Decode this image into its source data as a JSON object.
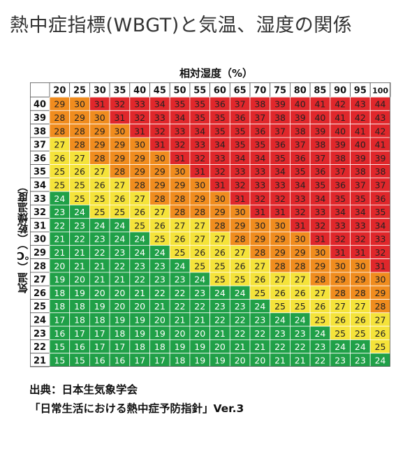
{
  "title": "熱中症指標(WBGT)と気温、湿度の関係",
  "source": {
    "line1": "出典：日本生気象学会",
    "line2": "「日常生活における熱中症予防指針」Ver.3"
  },
  "colors": {
    "danger": "#e0272b",
    "severe_warning": "#f08c1e",
    "warning": "#f5e33a",
    "caution": "#20a048"
  },
  "chart_data": {
    "type": "heatmap",
    "title": "熱中症指標(WBGT)と気温、湿度の関係",
    "xlabel": "相対湿度（%）",
    "ylabel": "気温（℃）（乾燥温度）",
    "x": [
      20,
      25,
      30,
      35,
      40,
      45,
      50,
      55,
      60,
      65,
      70,
      75,
      80,
      85,
      90,
      95,
      100
    ],
    "y": [
      40,
      39,
      38,
      37,
      36,
      35,
      34,
      33,
      32,
      31,
      30,
      29,
      28,
      27,
      26,
      25,
      24,
      23,
      22,
      21
    ],
    "values": [
      [
        29,
        30,
        31,
        32,
        33,
        34,
        35,
        35,
        36,
        37,
        38,
        39,
        40,
        41,
        42,
        43,
        44
      ],
      [
        28,
        29,
        30,
        31,
        32,
        33,
        34,
        35,
        35,
        36,
        37,
        38,
        39,
        40,
        41,
        42,
        43
      ],
      [
        28,
        28,
        29,
        30,
        31,
        32,
        33,
        34,
        35,
        35,
        36,
        37,
        38,
        39,
        40,
        41,
        42
      ],
      [
        27,
        28,
        29,
        29,
        30,
        31,
        32,
        33,
        34,
        35,
        35,
        36,
        37,
        38,
        39,
        40,
        41
      ],
      [
        26,
        27,
        28,
        29,
        29,
        30,
        31,
        32,
        33,
        34,
        34,
        35,
        36,
        37,
        38,
        39,
        39
      ],
      [
        25,
        26,
        27,
        28,
        29,
        29,
        30,
        31,
        32,
        33,
        33,
        34,
        35,
        36,
        37,
        38,
        38
      ],
      [
        25,
        25,
        26,
        27,
        28,
        29,
        29,
        30,
        31,
        32,
        33,
        33,
        34,
        35,
        36,
        37,
        37
      ],
      [
        24,
        25,
        25,
        26,
        27,
        28,
        28,
        29,
        30,
        31,
        32,
        32,
        33,
        34,
        35,
        35,
        36
      ],
      [
        23,
        24,
        25,
        25,
        26,
        27,
        28,
        28,
        29,
        30,
        31,
        31,
        32,
        33,
        34,
        34,
        35
      ],
      [
        22,
        23,
        24,
        24,
        25,
        26,
        27,
        27,
        28,
        29,
        30,
        30,
        31,
        32,
        33,
        33,
        34
      ],
      [
        21,
        22,
        23,
        24,
        24,
        25,
        26,
        27,
        27,
        28,
        29,
        29,
        30,
        31,
        32,
        32,
        33
      ],
      [
        21,
        21,
        22,
        23,
        24,
        24,
        25,
        26,
        26,
        27,
        28,
        29,
        29,
        30,
        31,
        31,
        32
      ],
      [
        20,
        21,
        21,
        22,
        23,
        23,
        24,
        25,
        25,
        26,
        27,
        28,
        28,
        29,
        30,
        30,
        31
      ],
      [
        19,
        20,
        21,
        21,
        22,
        23,
        23,
        24,
        25,
        25,
        26,
        27,
        27,
        28,
        29,
        29,
        30
      ],
      [
        18,
        19,
        20,
        20,
        21,
        22,
        22,
        23,
        24,
        24,
        25,
        26,
        26,
        27,
        28,
        28,
        29
      ],
      [
        18,
        18,
        19,
        20,
        20,
        21,
        22,
        22,
        23,
        23,
        24,
        25,
        25,
        26,
        27,
        27,
        28
      ],
      [
        17,
        18,
        18,
        19,
        19,
        20,
        21,
        21,
        22,
        22,
        23,
        24,
        24,
        25,
        26,
        26,
        27
      ],
      [
        16,
        17,
        17,
        18,
        19,
        19,
        20,
        20,
        21,
        22,
        22,
        23,
        23,
        24,
        25,
        25,
        26
      ],
      [
        15,
        16,
        17,
        17,
        18,
        18,
        19,
        19,
        20,
        21,
        21,
        22,
        22,
        23,
        24,
        24,
        25
      ],
      [
        15,
        15,
        16,
        16,
        17,
        17,
        18,
        19,
        19,
        20,
        20,
        21,
        21,
        22,
        23,
        23,
        24
      ]
    ],
    "thresholds": [
      {
        "min": 31,
        "color": "#e0272b"
      },
      {
        "min": 28,
        "color": "#f08c1e"
      },
      {
        "min": 25,
        "color": "#f5e33a"
      },
      {
        "min": 0,
        "color": "#20a048"
      }
    ],
    "legend": "none",
    "grid": true
  }
}
